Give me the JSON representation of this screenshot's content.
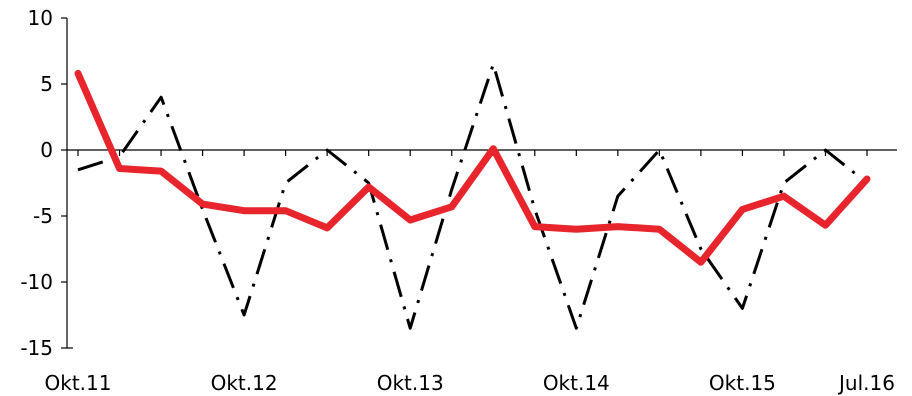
{
  "chart_data": {
    "type": "line",
    "title": "",
    "xlabel": "",
    "ylabel": "",
    "ylim": [
      -15,
      10
    ],
    "yticks": [
      10,
      5,
      0,
      -5,
      -10,
      -15
    ],
    "ytick_labels": [
      "10",
      "5",
      "0",
      "-5",
      "-10",
      "-15"
    ],
    "x_count": 20,
    "xtick_labels": [
      {
        "index": 0,
        "label": "Okt.11"
      },
      {
        "index": 4,
        "label": "Okt.12"
      },
      {
        "index": 8,
        "label": "Okt.13"
      },
      {
        "index": 12,
        "label": "Okt.14"
      },
      {
        "index": 16,
        "label": "Okt.15"
      },
      {
        "index": 19,
        "label": "Jul.16"
      }
    ],
    "grid": false,
    "series": [
      {
        "style": "dash-dot",
        "color": "#000000",
        "values": [
          -1.5,
          -0.5,
          4.0,
          -4.5,
          -12.5,
          -2.5,
          0.0,
          -2.5,
          -13.5,
          -3.0,
          6.5,
          -4.5,
          -13.5,
          -3.5,
          0.0,
          -7.5,
          -12.0,
          -2.5,
          0.0,
          -2.5
        ]
      },
      {
        "style": "solid",
        "color": "#e8242c",
        "values": [
          5.8,
          -1.4,
          -1.6,
          -4.1,
          -4.6,
          -4.6,
          -5.9,
          -2.8,
          -5.3,
          -4.3,
          0.1,
          -5.8,
          -6.0,
          -5.8,
          -6.0,
          -8.5,
          -4.5,
          -3.5,
          -5.7,
          -2.2
        ]
      }
    ]
  }
}
